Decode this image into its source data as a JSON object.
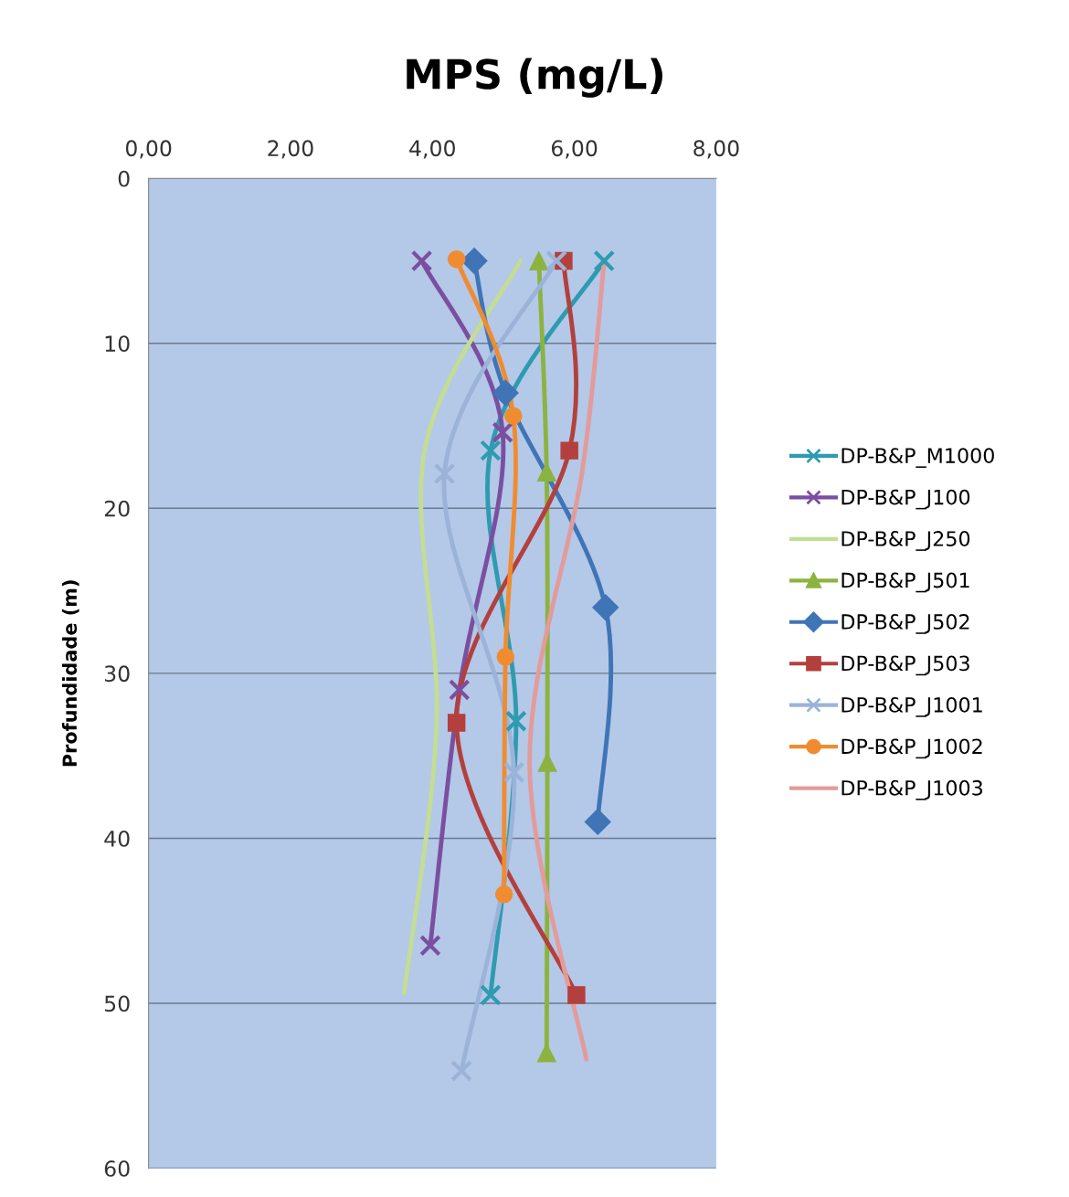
{
  "chart_data": {
    "type": "line",
    "title": "MPS (mg/L)",
    "ylabel": "Profundidade (m)",
    "xlim": [
      0,
      8
    ],
    "xticks": [
      {
        "value": 0,
        "label": "0,00"
      },
      {
        "value": 2,
        "label": "2,00"
      },
      {
        "value": 4,
        "label": "4,00"
      },
      {
        "value": 6,
        "label": "6,00"
      },
      {
        "value": 8,
        "label": "8,00"
      }
    ],
    "ylim": [
      60,
      0
    ],
    "yticks": [
      0,
      10,
      20,
      30,
      40,
      50,
      60
    ],
    "grid": "y",
    "legend": "right",
    "line_style": "solid",
    "series": [
      {
        "name": "DP-B&P_M1000",
        "color": "#2e9bb0",
        "marker": "cross",
        "x": [
          6.42,
          4.82,
          5.18,
          4.82
        ],
        "values": [
          5.0,
          16.5,
          32.9,
          49.5
        ]
      },
      {
        "name": "DP-B&P_J100",
        "color": "#7b4fa0",
        "marker": "cross",
        "x": [
          3.85,
          4.99,
          4.38,
          3.97
        ],
        "values": [
          5.0,
          15.4,
          31.0,
          46.5
        ]
      },
      {
        "name": "DP-B&P_J250",
        "color": "#c3dd93",
        "marker": "none",
        "x": [
          5.24,
          3.89,
          4.06,
          3.6
        ],
        "values": [
          5.0,
          16.5,
          33.0,
          49.4
        ]
      },
      {
        "name": "DP-B&P_J501",
        "color": "#8cb33f",
        "marker": "triangle",
        "x": [
          5.5,
          5.61,
          5.62,
          5.61
        ],
        "values": [
          5.0,
          17.8,
          35.4,
          53.0
        ]
      },
      {
        "name": "DP-B&P_J502",
        "color": "#3f75b6",
        "marker": "diamond",
        "x": [
          4.59,
          5.03,
          6.44,
          6.33
        ],
        "values": [
          5.0,
          13.0,
          26.0,
          39.0
        ]
      },
      {
        "name": "DP-B&P_J503",
        "color": "#b3403c",
        "marker": "square",
        "x": [
          5.85,
          5.93,
          4.34,
          6.03
        ],
        "values": [
          5.0,
          16.5,
          33.0,
          49.5
        ]
      },
      {
        "name": "DP-B&P_J1001",
        "color": "#9cb3d8",
        "marker": "cross",
        "x": [
          5.75,
          4.17,
          5.15,
          4.41
        ],
        "values": [
          5.0,
          17.9,
          36.0,
          54.1
        ]
      },
      {
        "name": "DP-B&P_J1002",
        "color": "#f08c30",
        "marker": "circle",
        "x": [
          4.34,
          5.14,
          5.03,
          5.01
        ],
        "values": [
          4.9,
          14.4,
          29.0,
          43.4
        ]
      },
      {
        "name": "DP-B&P_J1003",
        "color": "#e39b9a",
        "marker": "none",
        "x": [
          6.42,
          6.11,
          5.37,
          6.17
        ],
        "values": [
          5.0,
          17.8,
          35.5,
          53.4
        ]
      }
    ]
  }
}
